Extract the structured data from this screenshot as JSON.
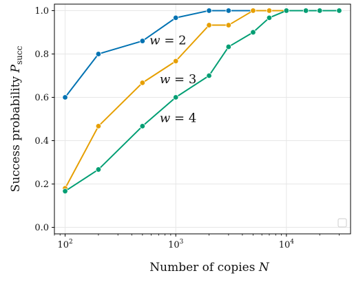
{
  "chart_data": {
    "type": "line",
    "xscale": "log",
    "xlim": [
      80,
      38000
    ],
    "ylim": [
      -0.03,
      1.03
    ],
    "xlabel": "Number of copies N",
    "ylabel": "Success probability P_succ",
    "xticks": [
      {
        "value": 100,
        "base": "10",
        "exp": "2"
      },
      {
        "value": 1000,
        "base": "10",
        "exp": "3"
      },
      {
        "value": 10000,
        "base": "10",
        "exp": "4"
      }
    ],
    "yticks": [
      {
        "value": 0.0,
        "label": "0.0"
      },
      {
        "value": 0.2,
        "label": "0.2"
      },
      {
        "value": 0.4,
        "label": "0.4"
      },
      {
        "value": 0.6,
        "label": "0.6"
      },
      {
        "value": 0.8,
        "label": "0.8"
      },
      {
        "value": 1.0,
        "label": "1.0"
      }
    ],
    "grid": true,
    "legend": "bottom-right (empty box)",
    "series": [
      {
        "id": "w2",
        "color": "#0072B2",
        "x": [
          100,
          200,
          500,
          1000,
          2000,
          3000,
          5000,
          7000,
          10000
        ],
        "y": [
          0.6,
          0.8,
          0.86,
          0.967,
          1.0,
          1.0,
          1.0,
          1.0,
          1.0
        ]
      },
      {
        "id": "w3",
        "color": "#E69F00",
        "x": [
          100,
          200,
          500,
          1000,
          2000,
          3000,
          5000,
          7000,
          10000,
          15000,
          20000,
          30000
        ],
        "y": [
          0.18,
          0.467,
          0.667,
          0.767,
          0.933,
          0.933,
          1.0,
          1.0,
          1.0,
          1.0,
          1.0,
          1.0
        ]
      },
      {
        "id": "w4",
        "color": "#009E73",
        "x": [
          100,
          200,
          500,
          1000,
          2000,
          3000,
          5000,
          7000,
          10000,
          15000,
          20000,
          30000
        ],
        "y": [
          0.167,
          0.267,
          0.467,
          0.6,
          0.7,
          0.833,
          0.9,
          0.967,
          1.0,
          1.0,
          1.0,
          1.0
        ]
      }
    ],
    "annotations": [
      {
        "id": "w2",
        "text": "w = 2",
        "x": 850,
        "y": 0.845
      },
      {
        "id": "w3",
        "text": "w = 3",
        "x": 1050,
        "y": 0.665
      },
      {
        "id": "w4",
        "text": "w = 4",
        "x": 1050,
        "y": 0.485
      }
    ]
  }
}
